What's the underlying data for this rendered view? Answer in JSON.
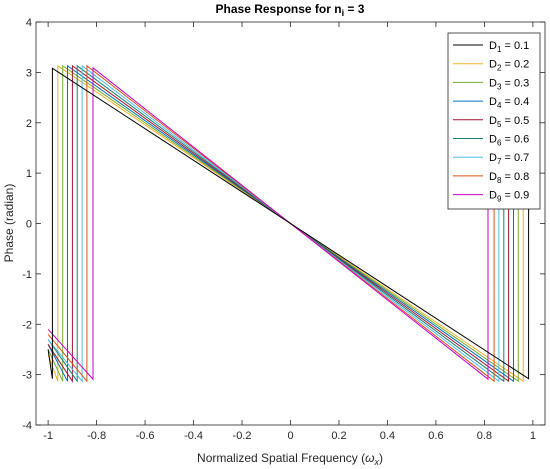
{
  "chart_data": {
    "type": "line",
    "title": {
      "main": "Phase Response for n",
      "sub": "i",
      "tail": " = 3"
    },
    "xlabel": {
      "main": "Normalized Spatial Frequency (",
      "sym": "ω",
      "sub": "x",
      "tail": ")"
    },
    "ylabel": "Phase (radian)",
    "xlim": [
      -1.05,
      1.05
    ],
    "ylim": [
      -4,
      4
    ],
    "xticks": [
      -1,
      -0.8,
      -0.6,
      -0.4,
      -0.2,
      0,
      0.2,
      0.4,
      0.6,
      0.8,
      1
    ],
    "xtick_labels": [
      "-1",
      "-0.8",
      "-0.6",
      "-0.4",
      "-0.2",
      "0",
      "0.2",
      "0.4",
      "0.6",
      "0.8",
      "1"
    ],
    "yticks": [
      -4,
      -3,
      -2,
      -1,
      0,
      1,
      2,
      3,
      4
    ],
    "ytick_labels": [
      "-4",
      "-3",
      "-2",
      "-1",
      "0",
      "1",
      "2",
      "3",
      "4"
    ],
    "grid": false,
    "legend_position": "top-right",
    "series": [
      {
        "name": "D1 = 0.1",
        "label": {
          "main": "D",
          "sub": "1",
          "tail": " = 0.1"
        },
        "color": "#000000",
        "x": [
          -1.0,
          -0.9825,
          -0.9825,
          0.9825,
          0.9825,
          1.0
        ],
        "y": [
          -2.5,
          -3.08,
          3.08,
          -3.08,
          3.08,
          2.5
        ]
      },
      {
        "name": "D2 = 0.2",
        "label": {
          "main": "D",
          "sub": "2",
          "tail": " = 0.2"
        },
        "color": "#edb120",
        "x": [
          -1.0,
          -0.96,
          -0.96,
          0.96,
          0.96,
          1.0
        ],
        "y": [
          -2.6,
          -3.13,
          3.13,
          -3.13,
          3.13,
          2.6
        ]
      },
      {
        "name": "D3 = 0.3",
        "label": {
          "main": "D",
          "sub": "3",
          "tail": " = 0.3"
        },
        "color": "#77ac30",
        "x": [
          -1.0,
          -0.94,
          -0.94,
          0.94,
          0.94,
          1.0
        ],
        "y": [
          -2.5,
          -3.13,
          3.13,
          -3.13,
          3.13,
          2.5
        ]
      },
      {
        "name": "D4 = 0.4",
        "label": {
          "main": "D",
          "sub": "4",
          "tail": " = 0.4"
        },
        "color": "#0072bd",
        "x": [
          -1.0,
          -0.92,
          -0.92,
          0.92,
          0.92,
          1.0
        ],
        "y": [
          -2.4,
          -3.13,
          3.13,
          -3.13,
          3.13,
          2.4
        ]
      },
      {
        "name": "D5 = 0.5",
        "label": {
          "main": "D",
          "sub": "5",
          "tail": " = 0.5"
        },
        "color": "#a2142f",
        "x": [
          -1.0,
          -0.9,
          -0.9,
          0.9,
          0.9,
          1.0
        ],
        "y": [
          -2.4,
          -3.13,
          3.13,
          -3.13,
          3.13,
          2.4
        ]
      },
      {
        "name": "D6 = 0.6",
        "label": {
          "main": "D",
          "sub": "6",
          "tail": " = 0.6"
        },
        "color": "#1b7f72",
        "x": [
          -1.0,
          -0.88,
          -0.88,
          0.88,
          0.88,
          1.0
        ],
        "y": [
          -2.3,
          -3.13,
          3.13,
          -3.13,
          3.13,
          2.3
        ]
      },
      {
        "name": "D7 = 0.7",
        "label": {
          "main": "D",
          "sub": "7",
          "tail": " = 0.7"
        },
        "color": "#4dbeee",
        "x": [
          -1.0,
          -0.86,
          -0.86,
          0.86,
          0.86,
          1.0
        ],
        "y": [
          -2.3,
          -3.13,
          3.13,
          -3.13,
          3.13,
          2.3
        ]
      },
      {
        "name": "D8 = 0.8",
        "label": {
          "main": "D",
          "sub": "8",
          "tail": " = 0.8"
        },
        "color": "#d95319",
        "x": [
          -1.0,
          -0.84,
          -0.84,
          0.84,
          0.84,
          1.0
        ],
        "y": [
          -2.2,
          -3.13,
          3.13,
          -3.13,
          3.13,
          2.2
        ]
      },
      {
        "name": "D9 = 0.9",
        "label": {
          "main": "D",
          "sub": "9",
          "tail": " = 0.9"
        },
        "color": "#cc00cc",
        "x": [
          -1.0,
          -0.815,
          -0.815,
          0.815,
          0.815,
          1.0
        ],
        "y": [
          -2.1,
          -3.09,
          3.09,
          -3.09,
          3.09,
          2.1
        ]
      }
    ]
  }
}
